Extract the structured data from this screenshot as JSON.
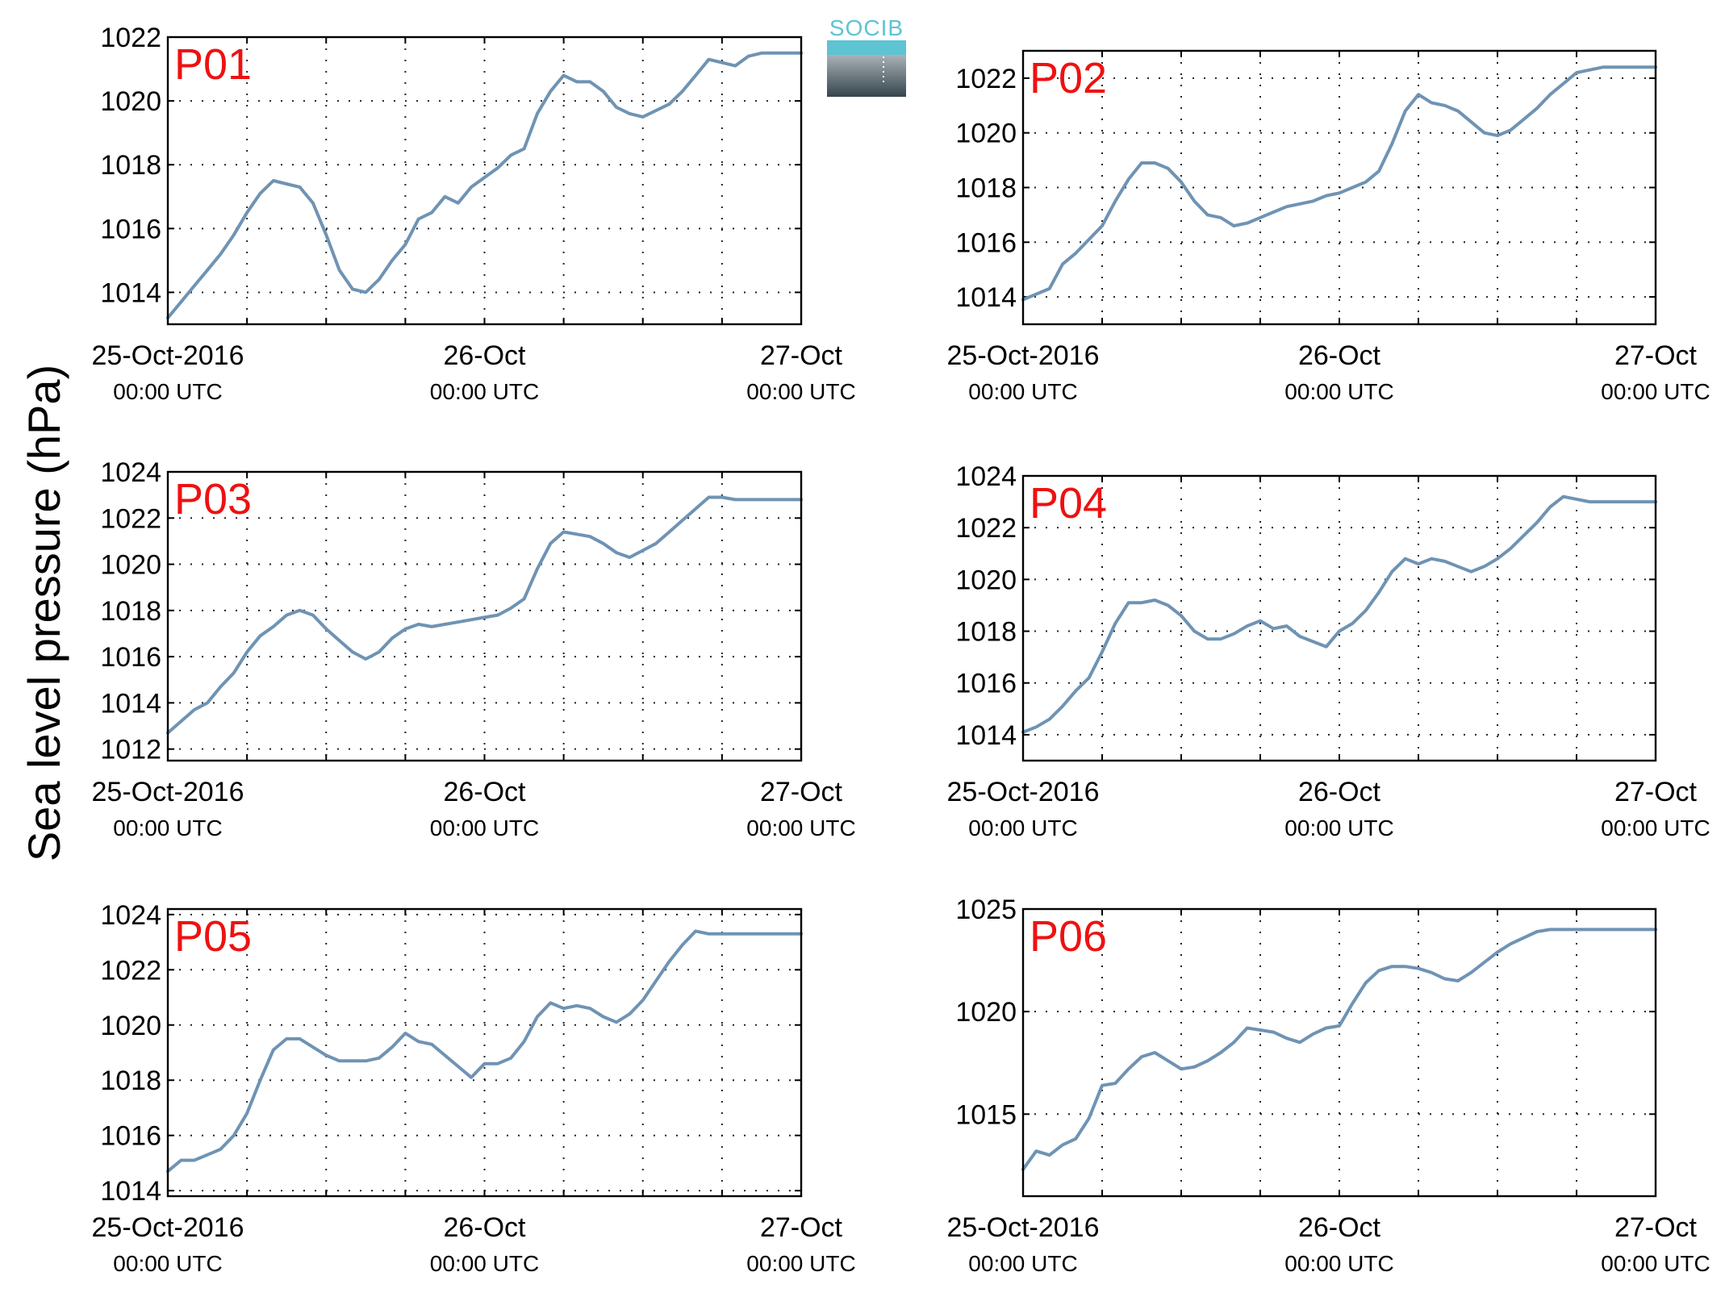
{
  "figure": {
    "ylabel": "Sea level pressure (hPa)",
    "logo_text": "SOCIB",
    "colors": {
      "series": "#6f93b3",
      "panel_label": "#ee1111",
      "logo_accent": "#5ec3d3",
      "logo_dark": "#3b4a52"
    }
  },
  "chart_data": [
    {
      "type": "line",
      "label": "P01",
      "x_ticks": [
        {
          "main": "25-Oct-2016",
          "sub": "00:00 UTC"
        },
        {
          "main": "26-Oct",
          "sub": "00:00 UTC"
        },
        {
          "main": "27-Oct",
          "sub": "00:00 UTC"
        }
      ],
      "xlim_hours": [
        0,
        48
      ],
      "ylim": [
        1013,
        1022
      ],
      "yticks": [
        1014,
        1016,
        1018,
        1020,
        1022
      ],
      "grid": true,
      "series": [
        {
          "x_hours": [
            0,
            1,
            2,
            3,
            4,
            5,
            6,
            7,
            8,
            9,
            10,
            11,
            12,
            13,
            14,
            15,
            16,
            17,
            18,
            19,
            20,
            21,
            22,
            23,
            24,
            25,
            26,
            27,
            28,
            29,
            30,
            31,
            32,
            33,
            34,
            35,
            36,
            37,
            38,
            39,
            40,
            41,
            42,
            43,
            44,
            45,
            46,
            47,
            48
          ],
          "values": [
            1013.2,
            1013.7,
            1014.2,
            1014.7,
            1015.2,
            1015.8,
            1016.5,
            1017.1,
            1017.5,
            1017.4,
            1017.3,
            1016.8,
            1015.8,
            1014.7,
            1014.1,
            1014.0,
            1014.4,
            1015.0,
            1015.5,
            1016.3,
            1016.5,
            1017.0,
            1016.8,
            1017.3,
            1017.6,
            1017.9,
            1018.3,
            1018.5,
            1019.6,
            1020.3,
            1020.8,
            1020.6,
            1020.6,
            1020.3,
            1019.8,
            1019.6,
            1019.5,
            1019.7,
            1019.9,
            1020.3,
            1020.8,
            1021.3,
            1021.2,
            1021.1,
            1021.4,
            1021.5,
            1021.5,
            1021.5,
            1021.5
          ]
        }
      ]
    },
    {
      "type": "line",
      "label": "P02",
      "x_ticks": [
        {
          "main": "25-Oct-2016",
          "sub": "00:00 UTC"
        },
        {
          "main": "26-Oct",
          "sub": "00:00 UTC"
        },
        {
          "main": "27-Oct",
          "sub": "00:00 UTC"
        }
      ],
      "xlim_hours": [
        0,
        48
      ],
      "ylim": [
        1013,
        1023
      ],
      "yticks": [
        1014,
        1016,
        1018,
        1020,
        1022
      ],
      "grid": true,
      "series": [
        {
          "x_hours": [
            0,
            1,
            2,
            3,
            4,
            5,
            6,
            7,
            8,
            9,
            10,
            11,
            12,
            13,
            14,
            15,
            16,
            17,
            18,
            19,
            20,
            21,
            22,
            23,
            24,
            25,
            26,
            27,
            28,
            29,
            30,
            31,
            32,
            33,
            34,
            35,
            36,
            37,
            38,
            39,
            40,
            41,
            42,
            43,
            44,
            45,
            46,
            47,
            48
          ],
          "values": [
            1013.9,
            1014.1,
            1014.3,
            1015.2,
            1015.6,
            1016.1,
            1016.6,
            1017.5,
            1018.3,
            1018.9,
            1018.9,
            1018.7,
            1018.2,
            1017.5,
            1017.0,
            1016.9,
            1016.6,
            1016.7,
            1016.9,
            1017.1,
            1017.3,
            1017.4,
            1017.5,
            1017.7,
            1017.8,
            1018.0,
            1018.2,
            1018.6,
            1019.6,
            1020.8,
            1021.4,
            1021.1,
            1021.0,
            1020.8,
            1020.4,
            1020.0,
            1019.9,
            1020.1,
            1020.5,
            1020.9,
            1021.4,
            1021.8,
            1022.2,
            1022.3,
            1022.4,
            1022.4,
            1022.4,
            1022.4,
            1022.4
          ]
        }
      ]
    },
    {
      "type": "line",
      "label": "P03",
      "x_ticks": [
        {
          "main": "25-Oct-2016",
          "sub": "00:00 UTC"
        },
        {
          "main": "26-Oct",
          "sub": "00:00 UTC"
        },
        {
          "main": "27-Oct",
          "sub": "00:00 UTC"
        }
      ],
      "xlim_hours": [
        0,
        48
      ],
      "ylim": [
        1011.5,
        1024
      ],
      "yticks": [
        1012,
        1014,
        1016,
        1018,
        1020,
        1022,
        1024
      ],
      "grid": true,
      "series": [
        {
          "x_hours": [
            0,
            1,
            2,
            3,
            4,
            5,
            6,
            7,
            8,
            9,
            10,
            11,
            12,
            13,
            14,
            15,
            16,
            17,
            18,
            19,
            20,
            21,
            22,
            23,
            24,
            25,
            26,
            27,
            28,
            29,
            30,
            31,
            32,
            33,
            34,
            35,
            36,
            37,
            38,
            39,
            40,
            41,
            42,
            43,
            44,
            45,
            46,
            47,
            48
          ],
          "values": [
            1012.7,
            1013.2,
            1013.7,
            1014.0,
            1014.7,
            1015.3,
            1016.2,
            1016.9,
            1017.3,
            1017.8,
            1018.0,
            1017.8,
            1017.2,
            1016.7,
            1016.2,
            1015.9,
            1016.2,
            1016.8,
            1017.2,
            1017.4,
            1017.3,
            1017.4,
            1017.5,
            1017.6,
            1017.7,
            1017.8,
            1018.1,
            1018.5,
            1019.8,
            1020.9,
            1021.4,
            1021.3,
            1021.2,
            1020.9,
            1020.5,
            1020.3,
            1020.6,
            1020.9,
            1021.4,
            1021.9,
            1022.4,
            1022.9,
            1022.9,
            1022.8,
            1022.8,
            1022.8,
            1022.8,
            1022.8,
            1022.8
          ]
        }
      ]
    },
    {
      "type": "line",
      "label": "P04",
      "x_ticks": [
        {
          "main": "25-Oct-2016",
          "sub": "00:00 UTC"
        },
        {
          "main": "26-Oct",
          "sub": "00:00 UTC"
        },
        {
          "main": "27-Oct",
          "sub": "00:00 UTC"
        }
      ],
      "xlim_hours": [
        0,
        48
      ],
      "ylim": [
        1013,
        1024
      ],
      "yticks": [
        1014,
        1016,
        1018,
        1020,
        1022,
        1024
      ],
      "grid": true,
      "series": [
        {
          "x_hours": [
            0,
            1,
            2,
            3,
            4,
            5,
            6,
            7,
            8,
            9,
            10,
            11,
            12,
            13,
            14,
            15,
            16,
            17,
            18,
            19,
            20,
            21,
            22,
            23,
            24,
            25,
            26,
            27,
            28,
            29,
            30,
            31,
            32,
            33,
            34,
            35,
            36,
            37,
            38,
            39,
            40,
            41,
            42,
            43,
            44,
            45,
            46,
            47,
            48
          ],
          "values": [
            1014.1,
            1014.3,
            1014.6,
            1015.1,
            1015.7,
            1016.2,
            1017.2,
            1018.3,
            1019.1,
            1019.1,
            1019.2,
            1019.0,
            1018.6,
            1018.0,
            1017.7,
            1017.7,
            1017.9,
            1018.2,
            1018.4,
            1018.1,
            1018.2,
            1017.8,
            1017.6,
            1017.4,
            1018.0,
            1018.3,
            1018.8,
            1019.5,
            1020.3,
            1020.8,
            1020.6,
            1020.8,
            1020.7,
            1020.5,
            1020.3,
            1020.5,
            1020.8,
            1021.2,
            1021.7,
            1022.2,
            1022.8,
            1023.2,
            1023.1,
            1023.0,
            1023.0,
            1023.0,
            1023.0,
            1023.0,
            1023.0
          ]
        }
      ]
    },
    {
      "type": "line",
      "label": "P05",
      "x_ticks": [
        {
          "main": "25-Oct-2016",
          "sub": "00:00 UTC"
        },
        {
          "main": "26-Oct",
          "sub": "00:00 UTC"
        },
        {
          "main": "27-Oct",
          "sub": "00:00 UTC"
        }
      ],
      "xlim_hours": [
        0,
        48
      ],
      "ylim": [
        1013.8,
        1024.2
      ],
      "yticks": [
        1014,
        1016,
        1018,
        1020,
        1022,
        1024
      ],
      "grid": true,
      "series": [
        {
          "x_hours": [
            0,
            1,
            2,
            3,
            4,
            5,
            6,
            7,
            8,
            9,
            10,
            11,
            12,
            13,
            14,
            15,
            16,
            17,
            18,
            19,
            20,
            21,
            22,
            23,
            24,
            25,
            26,
            27,
            28,
            29,
            30,
            31,
            32,
            33,
            34,
            35,
            36,
            37,
            38,
            39,
            40,
            41,
            42,
            43,
            44,
            45,
            46,
            47,
            48
          ],
          "values": [
            1014.7,
            1015.1,
            1015.1,
            1015.3,
            1015.5,
            1016.0,
            1016.8,
            1018.0,
            1019.1,
            1019.5,
            1019.5,
            1019.2,
            1018.9,
            1018.7,
            1018.7,
            1018.7,
            1018.8,
            1019.2,
            1019.7,
            1019.4,
            1019.3,
            1018.9,
            1018.5,
            1018.1,
            1018.6,
            1018.6,
            1018.8,
            1019.4,
            1020.3,
            1020.8,
            1020.6,
            1020.7,
            1020.6,
            1020.3,
            1020.1,
            1020.4,
            1020.9,
            1021.6,
            1022.3,
            1022.9,
            1023.4,
            1023.3,
            1023.3,
            1023.3,
            1023.3,
            1023.3,
            1023.3,
            1023.3,
            1023.3
          ]
        }
      ]
    },
    {
      "type": "line",
      "label": "P06",
      "x_ticks": [
        {
          "main": "25-Oct-2016",
          "sub": "00:00 UTC"
        },
        {
          "main": "26-Oct",
          "sub": "00:00 UTC"
        },
        {
          "main": "27-Oct",
          "sub": "00:00 UTC"
        }
      ],
      "xlim_hours": [
        0,
        48
      ],
      "ylim": [
        1011,
        1025
      ],
      "yticks": [
        1015,
        1020,
        1025
      ],
      "grid": true,
      "series": [
        {
          "x_hours": [
            0,
            1,
            2,
            3,
            4,
            5,
            6,
            7,
            8,
            9,
            10,
            11,
            12,
            13,
            14,
            15,
            16,
            17,
            18,
            19,
            20,
            21,
            22,
            23,
            24,
            25,
            26,
            27,
            28,
            29,
            30,
            31,
            32,
            33,
            34,
            35,
            36,
            37,
            38,
            39,
            40,
            41,
            42,
            43,
            44,
            45,
            46,
            47,
            48
          ],
          "values": [
            1012.3,
            1013.2,
            1013.0,
            1013.5,
            1013.8,
            1014.8,
            1016.4,
            1016.5,
            1017.2,
            1017.8,
            1018.0,
            1017.6,
            1017.2,
            1017.3,
            1017.6,
            1018.0,
            1018.5,
            1019.2,
            1019.1,
            1019.0,
            1018.7,
            1018.5,
            1018.9,
            1019.2,
            1019.3,
            1020.4,
            1021.4,
            1022.0,
            1022.2,
            1022.2,
            1022.1,
            1021.9,
            1021.6,
            1021.5,
            1021.9,
            1022.4,
            1022.9,
            1023.3,
            1023.6,
            1023.9,
            1024.0,
            1024.0,
            1024.0,
            1024.0,
            1024.0,
            1024.0,
            1024.0,
            1024.0,
            1024.0
          ]
        }
      ]
    }
  ]
}
